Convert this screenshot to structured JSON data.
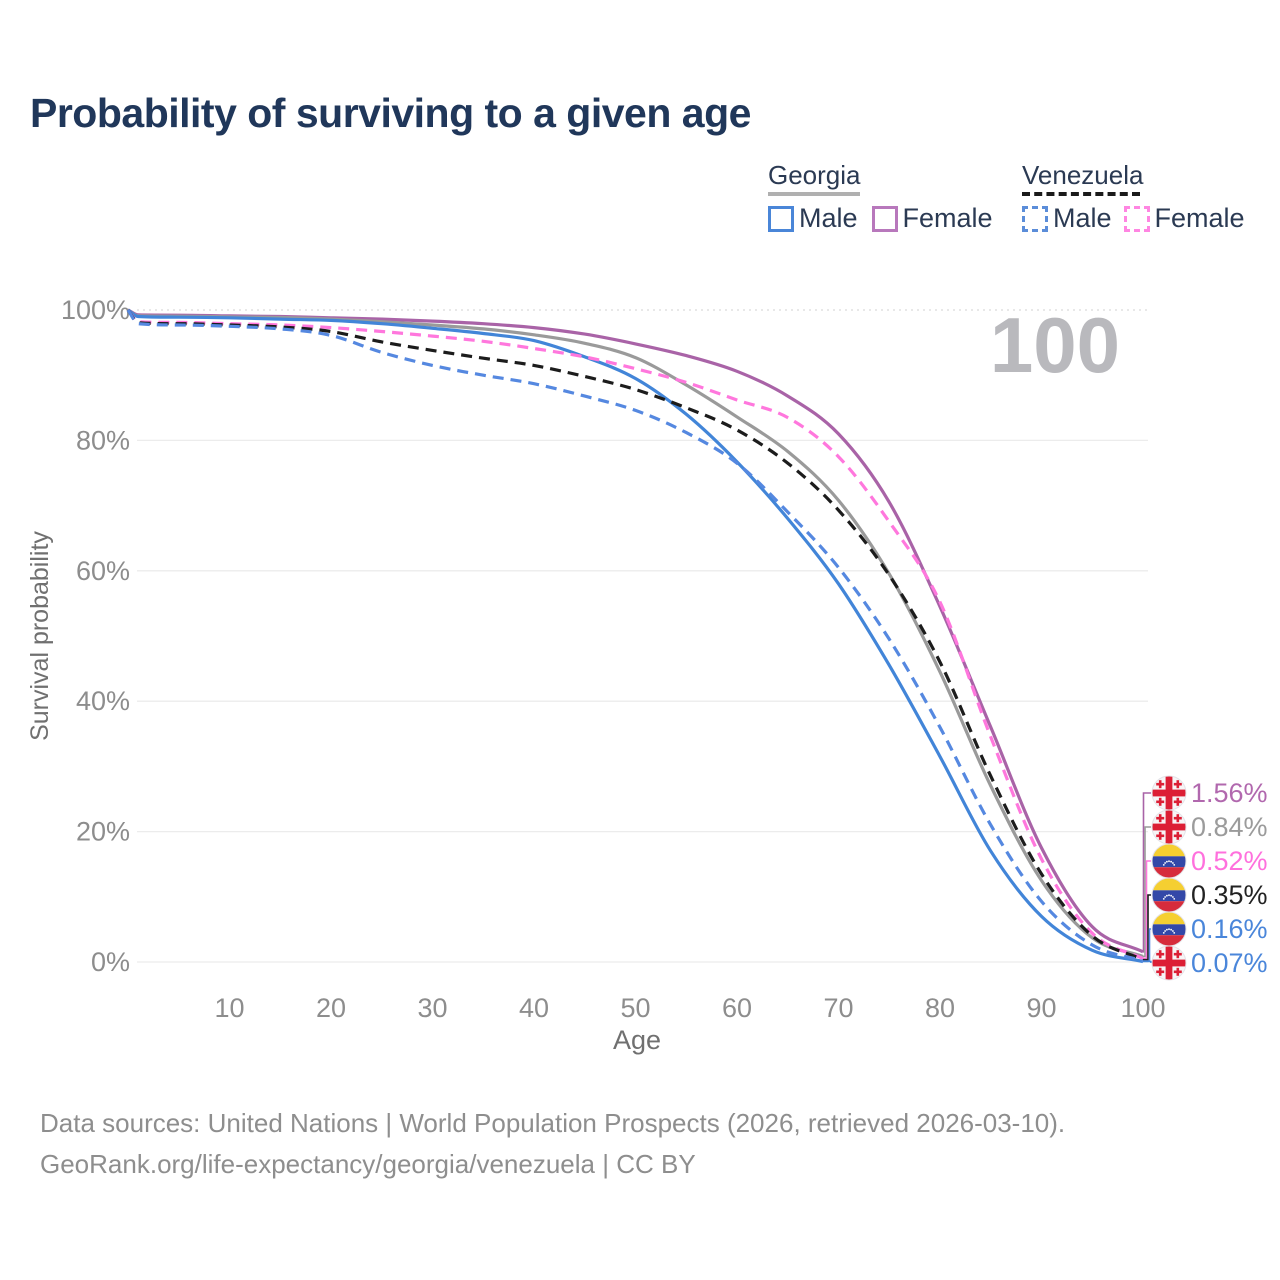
{
  "title": "Probability of surviving to a given age",
  "watermark": "100",
  "legend": {
    "groups": [
      {
        "label": "Georgia",
        "line_style": "solid",
        "underline_color": "#b0b0b0",
        "items": [
          {
            "label": "Male",
            "color": "#4a86d8"
          },
          {
            "label": "Female",
            "color": "#b878bc"
          }
        ]
      },
      {
        "label": "Venezuela",
        "line_style": "dashed",
        "underline_color": "#1a1a1a",
        "items": [
          {
            "label": "Male",
            "color": "#5b8dd9"
          },
          {
            "label": "Female",
            "color": "#ff86e2"
          }
        ]
      }
    ]
  },
  "chart_data": {
    "type": "line",
    "title": "Probability of surviving to a given age",
    "x_axis": {
      "label": "Age",
      "range": [
        0,
        100
      ],
      "ticks": [
        10,
        20,
        30,
        40,
        50,
        60,
        70,
        80,
        90,
        100
      ]
    },
    "y_axis": {
      "label": "Survival probability",
      "range": [
        0,
        100
      ],
      "tick_values": [
        0,
        20,
        40,
        60,
        80,
        100
      ],
      "tick_labels": [
        "0%",
        "20%",
        "40%",
        "60%",
        "80%",
        "100%"
      ],
      "gridlines": true
    },
    "x": [
      0,
      1,
      5,
      10,
      15,
      20,
      25,
      30,
      35,
      40,
      45,
      50,
      55,
      60,
      65,
      70,
      75,
      80,
      85,
      90,
      95,
      100
    ],
    "series": [
      {
        "key": "georgia-female",
        "name": "Georgia Female",
        "country": "Georgia",
        "sex": "Female",
        "color": "#a963a7",
        "line_style": "solid",
        "flag": "georgia",
        "end_label": "1.56%",
        "end_value": 1.56,
        "label_color": "#b168ae",
        "values": [
          100,
          99.25,
          99.2,
          99.1,
          99.0,
          98.8,
          98.6,
          98.3,
          97.9,
          97.3,
          96.3,
          94.8,
          93.0,
          90.6,
          86.8,
          81.0,
          70.5,
          54.5,
          36.0,
          17.5,
          5.4,
          1.56
        ]
      },
      {
        "key": "georgia-total",
        "name": "Georgia Both sexes",
        "country": "Georgia",
        "sex": "Both",
        "color": "#9a9a9a",
        "line_style": "solid",
        "flag": "georgia",
        "end_label": "0.84%",
        "end_value": 0.84,
        "label_color": "#9b9b9b",
        "values": [
          100,
          99.1,
          99.05,
          98.95,
          98.85,
          98.6,
          98.2,
          97.7,
          97.1,
          96.2,
          94.9,
          92.7,
          88.5,
          83.6,
          78.3,
          70.8,
          59.5,
          44.5,
          27.0,
          12.5,
          3.7,
          0.84
        ]
      },
      {
        "key": "georgia-male",
        "name": "Georgia Male",
        "country": "Georgia",
        "sex": "Male",
        "color": "#4285d8",
        "line_style": "solid",
        "flag": "georgia",
        "end_label": "0.07%",
        "end_value": 0.07,
        "label_color": "#4a86da",
        "values": [
          100,
          99.0,
          98.9,
          98.8,
          98.6,
          98.4,
          97.9,
          97.2,
          96.4,
          95.3,
          92.8,
          89.5,
          84.0,
          76.7,
          68.0,
          58.0,
          45.5,
          31.5,
          17.0,
          7.0,
          1.8,
          0.07
        ]
      },
      {
        "key": "venezuela-female",
        "name": "Venezuela Female",
        "country": "Venezuela",
        "sex": "Female",
        "color": "#ff77dd",
        "line_style": "dashed",
        "flag": "venezuela",
        "end_label": "0.52%",
        "end_value": 0.52,
        "label_color": "#ff70dd",
        "values": [
          100,
          98.2,
          98.1,
          97.9,
          97.7,
          97.3,
          96.7,
          96.0,
          95.2,
          94.1,
          92.8,
          91.0,
          88.9,
          86.2,
          83.5,
          77.5,
          67.5,
          55.2,
          34.5,
          15.8,
          4.4,
          0.52
        ]
      },
      {
        "key": "venezuela-total",
        "name": "Venezuela Both sexes",
        "country": "Venezuela",
        "sex": "Both",
        "color": "#1c1c1c",
        "line_style": "dashed",
        "flag": "venezuela",
        "end_label": "0.35%",
        "end_value": 0.35,
        "label_color": "#222222",
        "values": [
          100,
          98.05,
          97.9,
          97.7,
          97.4,
          96.7,
          95.1,
          93.8,
          92.6,
          91.5,
          89.8,
          87.8,
          85.0,
          81.6,
          76.5,
          69.3,
          59.3,
          46.0,
          28.5,
          13.5,
          4.0,
          0.35
        ]
      },
      {
        "key": "venezuela-male",
        "name": "Venezuela Male",
        "country": "Venezuela",
        "sex": "Male",
        "color": "#5588e0",
        "line_style": "dashed",
        "flag": "venezuela",
        "end_label": "0.16%",
        "end_value": 0.16,
        "label_color": "#4a86da",
        "values": [
          100,
          97.9,
          97.7,
          97.5,
          97.1,
          96.1,
          93.5,
          91.5,
          90.0,
          88.7,
          86.8,
          84.6,
          81.2,
          76.5,
          69.0,
          60.5,
          49.5,
          36.0,
          21.0,
          9.3,
          2.6,
          0.16
        ]
      }
    ]
  },
  "footer": {
    "line1": "Data sources: United Nations | World Population Prospects (2026, retrieved 2026-03-10).",
    "line2": "GeoRank.org/life-expectancy/georgia/venezuela | CC BY"
  }
}
